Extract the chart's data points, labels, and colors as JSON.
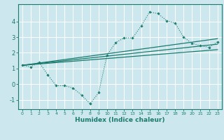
{
  "xlabel": "Humidex (Indice chaleur)",
  "bg_color": "#cce8ee",
  "grid_color": "#ffffff",
  "line_color": "#1a7a6e",
  "xlim": [
    -0.5,
    23.5
  ],
  "ylim": [
    -1.6,
    5.1
  ],
  "xticks": [
    0,
    1,
    2,
    3,
    4,
    5,
    6,
    7,
    8,
    9,
    10,
    11,
    12,
    13,
    14,
    15,
    16,
    17,
    18,
    19,
    20,
    21,
    22,
    23
  ],
  "yticks": [
    -1,
    0,
    1,
    2,
    3,
    4
  ],
  "data_line": {
    "x": [
      0,
      1,
      2,
      3,
      4,
      5,
      6,
      7,
      8,
      9,
      10,
      11,
      12,
      13,
      14,
      15,
      16,
      17,
      18,
      19,
      20,
      21,
      22,
      23
    ],
    "y": [
      1.2,
      1.1,
      1.4,
      0.6,
      -0.1,
      -0.1,
      -0.25,
      -0.7,
      -1.25,
      -0.55,
      1.85,
      2.65,
      2.95,
      2.95,
      3.7,
      4.6,
      4.5,
      4.05,
      3.9,
      3.0,
      2.6,
      2.45,
      2.35,
      2.7
    ]
  },
  "reg_line1": {
    "x": [
      0,
      23
    ],
    "y": [
      1.2,
      2.9
    ]
  },
  "reg_line2": {
    "x": [
      0,
      23
    ],
    "y": [
      1.2,
      2.55
    ]
  },
  "reg_line3": {
    "x": [
      0,
      23
    ],
    "y": [
      1.2,
      2.2
    ]
  }
}
